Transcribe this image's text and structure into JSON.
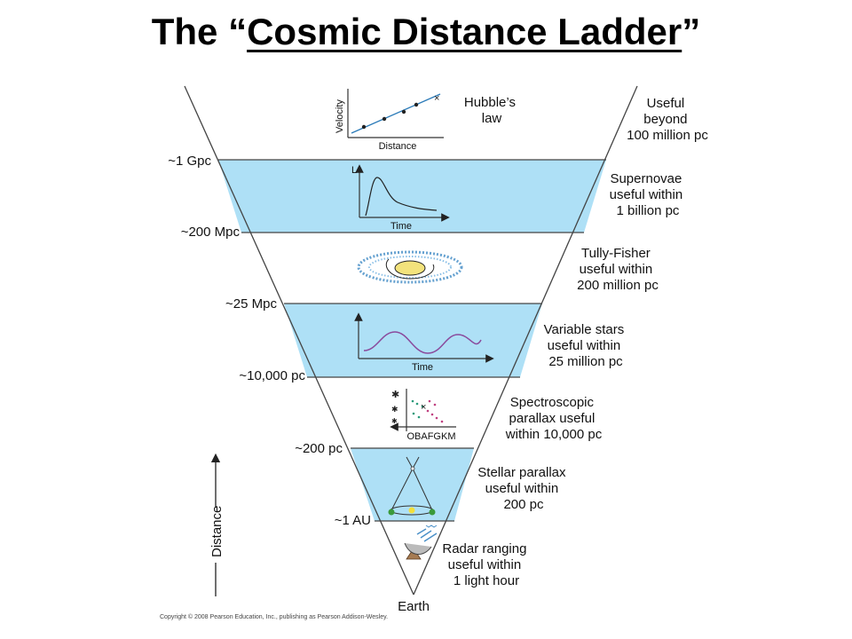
{
  "title": {
    "prefix": "The “",
    "underlined": "Cosmic Distance Ladder",
    "suffix": "”"
  },
  "left_labels": [
    "~1 Gpc",
    "~200 Mpc",
    "~25 Mpc",
    "~10,000 pc",
    "~200 pc",
    "~1 AU"
  ],
  "methods": [
    {
      "lines": [
        "Useful",
        "beyond",
        "100 million pc"
      ]
    },
    {
      "lines": [
        "Supernovae",
        "useful within",
        "1 billion pc"
      ]
    },
    {
      "lines": [
        "Tully-Fisher",
        "useful within",
        "200 million pc"
      ]
    },
    {
      "lines": [
        "Variable stars",
        "useful within",
        "25 million pc"
      ]
    },
    {
      "lines": [
        "Spectroscopic",
        "parallax useful",
        "within 10,000 pc"
      ]
    },
    {
      "lines": [
        "Stellar parallax",
        "useful within",
        "200 pc"
      ]
    },
    {
      "lines": [
        "Radar ranging",
        "useful within",
        "1 light hour"
      ]
    }
  ],
  "hubble": {
    "label_lines": [
      "Hubble’s",
      "law"
    ],
    "xlabel": "Distance",
    "ylabel": "Velocity"
  },
  "supernova_plot": {
    "ylabel": "L",
    "xlabel": "Time"
  },
  "variable_plot": {
    "xlabel": "Time"
  },
  "hr_plot": {
    "xlabel": "OBAFGKM"
  },
  "axis_label": "Distance",
  "bottom_label": "Earth",
  "copyright": "Copyright © 2008 Pearson Education, Inc., publishing as Pearson Addison-Wesley.",
  "colors": {
    "band_fill": "#aee0f6",
    "outline": "#444444",
    "purple_curve": "#8a4a9c",
    "galaxy": "#4a90c8"
  }
}
